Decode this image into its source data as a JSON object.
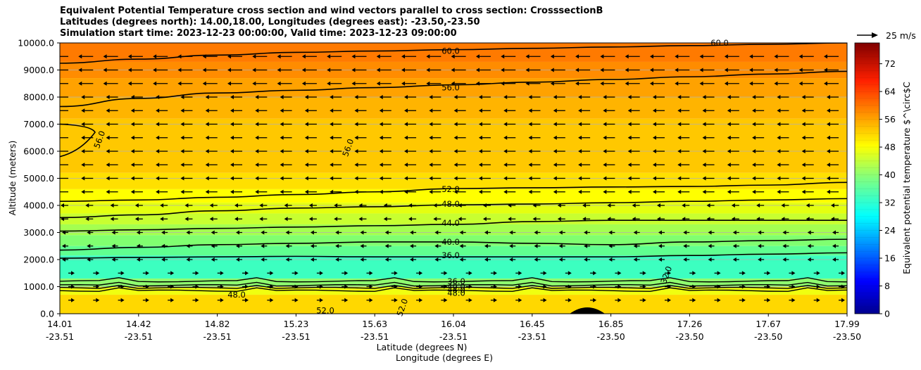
{
  "chart_data": {
    "type": "contour",
    "title_lines": [
      "Equivalent Potential Temperature cross section and wind vectors parallel to cross section: CrosssectionB",
      "Latitudes (degrees north): 14.00,18.00, Longitudes (degrees east): -23.50,-23.50",
      "Simulation start time: 2023-12-23 00:00:00, Valid time: 2023-12-23 09:00:00"
    ],
    "ylabel": "Altitude (meters)",
    "xlabel_lat": "Latitude (degrees N)",
    "xlabel_lon": "Longitude (degrees E)",
    "ylim": [
      0,
      10000
    ],
    "yticks": [
      "0.0",
      "1000.0",
      "2000.0",
      "3000.0",
      "4000.0",
      "5000.0",
      "6000.0",
      "7000.0",
      "8000.0",
      "9000.0",
      "10000.0"
    ],
    "xticks_lat": [
      "14.01",
      "14.42",
      "14.82",
      "15.23",
      "15.63",
      "16.04",
      "16.45",
      "16.85",
      "17.26",
      "17.67",
      "17.99"
    ],
    "xticks_lon": [
      "-23.51",
      "-23.51",
      "-23.51",
      "-23.51",
      "-23.51",
      "-23.51",
      "-23.51",
      "-23.50",
      "-23.50",
      "-23.50",
      "-23.50"
    ],
    "contour_labels": [
      "60.0",
      "56.0",
      "56.0",
      "56.0",
      "52.0",
      "48.0",
      "44.0",
      "40.0",
      "36.0",
      "36.0",
      "40.0",
      "44.0",
      "48.0",
      "48.0",
      "52.0",
      "52.0",
      "32.0",
      "60.0"
    ],
    "contour_levels_lines": [
      {
        "level": 60,
        "heights": [
          9250,
          9400,
          9550,
          9650,
          9700,
          9750,
          9800,
          9850,
          9900,
          9950,
          10000
        ]
      },
      {
        "level": 56,
        "heights": [
          7650,
          7950,
          8150,
          8250,
          8350,
          8450,
          8550,
          8650,
          8750,
          8850,
          8950
        ]
      },
      {
        "level": 52,
        "heights": [
          4150,
          4200,
          4300,
          4400,
          4500,
          4620,
          4650,
          4680,
          4700,
          4750,
          4850
        ]
      },
      {
        "level": 48,
        "heights": [
          3550,
          3650,
          3800,
          3900,
          3950,
          4020,
          4050,
          4100,
          4150,
          4200,
          4250
        ]
      },
      {
        "level": 44,
        "heights": [
          3050,
          3100,
          3150,
          3200,
          3250,
          3300,
          3400,
          3450,
          3450,
          3450,
          3450
        ]
      },
      {
        "level": 40,
        "heights": [
          2350,
          2450,
          2550,
          2600,
          2650,
          2650,
          2600,
          2550,
          2650,
          2700,
          2750
        ]
      },
      {
        "level": 36,
        "heights": [
          2050,
          2080,
          2100,
          2120,
          2100,
          2100,
          2100,
          2100,
          2150,
          2200,
          2250
        ]
      }
    ],
    "colorbar": {
      "label": "Equivalent potential temperature $^\\circ$C",
      "ticks": [
        "0",
        "8",
        "16",
        "24",
        "32",
        "40",
        "48",
        "56",
        "64",
        "72"
      ],
      "range": [
        0,
        78
      ]
    },
    "quiver_key": "25 m/s",
    "wind_direction_bands": [
      {
        "from": 0,
        "to": 2000,
        "direction": "east",
        "speed": "weak"
      },
      {
        "from": 2000,
        "to": 4500,
        "direction": "west",
        "speed": "weak"
      },
      {
        "from": 4500,
        "to": 10000,
        "direction": "west",
        "speed": "moderate"
      }
    ]
  }
}
